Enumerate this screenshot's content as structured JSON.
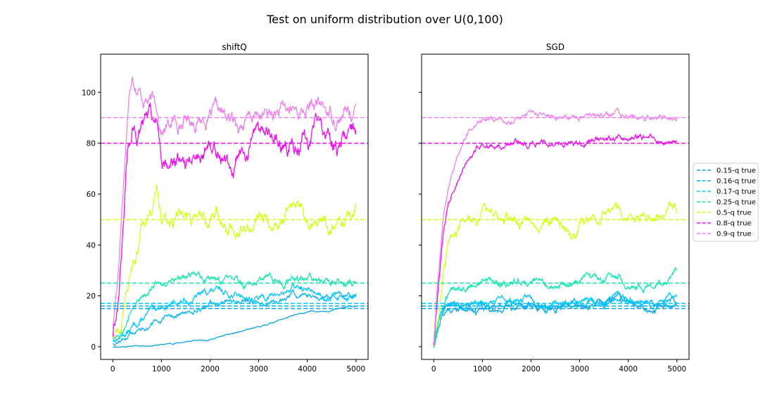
{
  "figure": {
    "suptitle": "Test on uniform distribution over U(0,100)"
  },
  "legend": {
    "placement": "right-outside",
    "entries": [
      {
        "label": "0.15-q true",
        "color": "#0aa6e6"
      },
      {
        "label": "0.16-q true",
        "color": "#07b6f0"
      },
      {
        "label": "0.17-q true",
        "color": "#00c8ff"
      },
      {
        "label": "0.25-q true",
        "color": "#18e6b0"
      },
      {
        "label": "0.5-q true",
        "color": "#d4ff1c"
      },
      {
        "label": "0.8-q true",
        "color": "#ee10ee"
      },
      {
        "label": "0.9-q true",
        "color": "#ee82ee"
      }
    ]
  },
  "chart_data": [
    {
      "type": "line",
      "title": "shiftQ",
      "xlabel": "",
      "ylabel": "",
      "xlim": [
        -250,
        5250
      ],
      "ylim": [
        -5,
        115
      ],
      "xticks": [
        0,
        1000,
        2000,
        3000,
        4000,
        5000
      ],
      "yticks": [
        0,
        20,
        40,
        60,
        80,
        100
      ],
      "grid": false,
      "true_quantiles": [
        {
          "q": 0.15,
          "value": 15,
          "color": "#0aa6e6"
        },
        {
          "q": 0.16,
          "value": 16,
          "color": "#07b6f0"
        },
        {
          "q": 0.17,
          "value": 17,
          "color": "#00c8ff"
        },
        {
          "q": 0.25,
          "value": 25,
          "color": "#18e6b0"
        },
        {
          "q": 0.5,
          "value": 50,
          "color": "#d4ff1c"
        },
        {
          "q": 0.8,
          "value": 80,
          "color": "#ee10ee"
        },
        {
          "q": 0.9,
          "value": 90,
          "color": "#ee82ee"
        }
      ],
      "series": [
        {
          "color": "#0aa6e6",
          "noise": 0.2,
          "seed": 11,
          "x": [
            0,
            1000,
            2000,
            3000,
            3500,
            4000,
            4500,
            5000
          ],
          "y": [
            0,
            0.8,
            3,
            7.5,
            11,
            13.5,
            14.5,
            16
          ]
        },
        {
          "color": "#07b6f0",
          "noise": 0.8,
          "seed": 12,
          "x": [
            0,
            300,
            700,
            1000,
            1500,
            2000,
            2500,
            3000,
            3500,
            3700,
            4000,
            4500,
            5000
          ],
          "y": [
            1.5,
            4,
            8,
            10.5,
            13,
            17.5,
            17.5,
            17,
            18.5,
            21,
            20.5,
            19.5,
            20
          ]
        },
        {
          "color": "#00c8ff",
          "noise": 1.0,
          "seed": 13,
          "x": [
            0,
            300,
            700,
            1000,
            1500,
            2000,
            2500,
            3000,
            3500,
            3700,
            4000,
            4500,
            5000
          ],
          "y": [
            2.5,
            6,
            12,
            16,
            18,
            22,
            20.5,
            19,
            21,
            23.5,
            22,
            20.5,
            20
          ]
        },
        {
          "color": "#18e6b0",
          "noise": 1.2,
          "seed": 14,
          "x": [
            0,
            200,
            500,
            800,
            1000,
            1500,
            2000,
            2500,
            3000,
            3500,
            3700,
            4000,
            4500,
            5000
          ],
          "y": [
            3.5,
            8,
            17,
            26,
            26,
            27,
            27.5,
            24,
            25,
            26,
            29,
            26,
            24,
            26
          ]
        },
        {
          "color": "#d4ff1c",
          "noise": 2.4,
          "seed": 15,
          "x": [
            0,
            200,
            400,
            600,
            800,
            900,
            1000,
            1500,
            2000,
            2500,
            2800,
            3000,
            3500,
            3700,
            4000,
            4500,
            5000
          ],
          "y": [
            5,
            12,
            30,
            47,
            55,
            61,
            50,
            49,
            51,
            49,
            44,
            48,
            54,
            55,
            49,
            49,
            54
          ]
        },
        {
          "color": "#ee10ee",
          "noise": 3.2,
          "seed": 16,
          "x": [
            0,
            100,
            200,
            300,
            400,
            500,
            700,
            900,
            1000,
            1500,
            2000,
            2500,
            3000,
            3500,
            4000,
            4200,
            4500,
            4700,
            5000
          ],
          "y": [
            5,
            18,
            45,
            78,
            86,
            84,
            84,
            87,
            75,
            76,
            80,
            76,
            80,
            81,
            82,
            85,
            80,
            79,
            84
          ]
        },
        {
          "color": "#ee82ee",
          "noise": 2.6,
          "seed": 17,
          "x": [
            0,
            100,
            200,
            300,
            400,
            500,
            600,
            700,
            800,
            900,
            1000,
            1500,
            2000,
            2500,
            3000,
            3500,
            4000,
            4200,
            4500,
            5000
          ],
          "y": [
            7,
            28,
            60,
            92,
            110,
            105,
            100,
            99,
            96,
            95,
            86,
            90,
            91,
            87,
            90,
            91,
            93,
            95,
            91,
            93
          ]
        }
      ]
    },
    {
      "type": "line",
      "title": "SGD",
      "xlabel": "",
      "ylabel": "",
      "xlim": [
        -250,
        5250
      ],
      "ylim": [
        -5,
        115
      ],
      "xticks": [
        0,
        1000,
        2000,
        3000,
        4000,
        5000
      ],
      "yticks": [
        0,
        20,
        40,
        60,
        80,
        100
      ],
      "yticklabels_visible": false,
      "grid": false,
      "true_quantiles": [
        {
          "q": 0.15,
          "value": 15,
          "color": "#0aa6e6"
        },
        {
          "q": 0.16,
          "value": 16,
          "color": "#07b6f0"
        },
        {
          "q": 0.17,
          "value": 17,
          "color": "#00c8ff"
        },
        {
          "q": 0.25,
          "value": 25,
          "color": "#18e6b0"
        },
        {
          "q": 0.5,
          "value": 50,
          "color": "#d4ff1c"
        },
        {
          "q": 0.8,
          "value": 80,
          "color": "#ee10ee"
        },
        {
          "q": 0.9,
          "value": 90,
          "color": "#ee82ee"
        }
      ],
      "series": [
        {
          "color": "#0aa6e6",
          "noise": 1.0,
          "seed": 21,
          "x": [
            0,
            50,
            150,
            300,
            600,
            1000,
            1500,
            2000,
            2500,
            3000,
            3500,
            3800,
            4000,
            4500,
            5000
          ],
          "y": [
            0,
            5,
            12,
            15,
            15,
            15,
            16,
            17,
            15,
            16,
            16,
            19,
            17,
            15,
            17
          ]
        },
        {
          "color": "#07b6f0",
          "noise": 1.0,
          "seed": 22,
          "x": [
            0,
            50,
            150,
            300,
            600,
            1000,
            1500,
            2000,
            2500,
            3000,
            3500,
            3800,
            4000,
            4500,
            5000
          ],
          "y": [
            0.5,
            6,
            13,
            16,
            16,
            16,
            17,
            18,
            16,
            17,
            17,
            20,
            18,
            16,
            18
          ]
        },
        {
          "color": "#00c8ff",
          "noise": 1.0,
          "seed": 23,
          "x": [
            0,
            50,
            150,
            300,
            600,
            1000,
            1500,
            2000,
            2500,
            3000,
            3500,
            3800,
            4000,
            4500,
            5000
          ],
          "y": [
            1,
            7,
            14,
            17,
            17,
            17,
            18,
            19,
            17,
            18,
            18,
            21,
            19,
            17,
            19
          ]
        },
        {
          "color": "#18e6b0",
          "noise": 1.2,
          "seed": 24,
          "x": [
            0,
            100,
            250,
            500,
            800,
            1000,
            1500,
            2000,
            2500,
            3000,
            3500,
            3800,
            4000,
            4500,
            4800,
            5000
          ],
          "y": [
            0,
            10,
            18,
            24,
            25,
            26,
            25,
            26,
            23,
            25,
            27,
            28,
            26,
            25,
            25,
            29
          ]
        },
        {
          "color": "#d4ff1c",
          "noise": 1.8,
          "seed": 25,
          "x": [
            0,
            100,
            200,
            300,
            500,
            800,
            1000,
            1500,
            2000,
            2500,
            2900,
            3000,
            3500,
            4000,
            4500,
            5000
          ],
          "y": [
            1,
            15,
            30,
            40,
            46,
            49,
            51,
            50,
            51,
            49,
            44,
            48,
            54,
            49,
            50,
            53
          ]
        },
        {
          "color": "#ee10ee",
          "noise": 1.0,
          "seed": 26,
          "x": [
            0,
            100,
            200,
            300,
            500,
            700,
            900,
            1000,
            1500,
            2000,
            2500,
            3000,
            3500,
            4000,
            4500,
            5000
          ],
          "y": [
            1,
            25,
            45,
            57,
            67,
            74,
            79,
            80,
            79,
            80,
            80,
            80,
            81,
            83,
            82,
            81
          ]
        },
        {
          "color": "#ee82ee",
          "noise": 0.9,
          "seed": 27,
          "x": [
            0,
            100,
            200,
            300,
            500,
            700,
            900,
            1000,
            1500,
            2000,
            2500,
            3000,
            3500,
            3800,
            4000,
            4500,
            5000
          ],
          "y": [
            2,
            30,
            52,
            64,
            77,
            84,
            88,
            90,
            89,
            92,
            90,
            90,
            91,
            93,
            91,
            90,
            90
          ]
        }
      ]
    }
  ]
}
